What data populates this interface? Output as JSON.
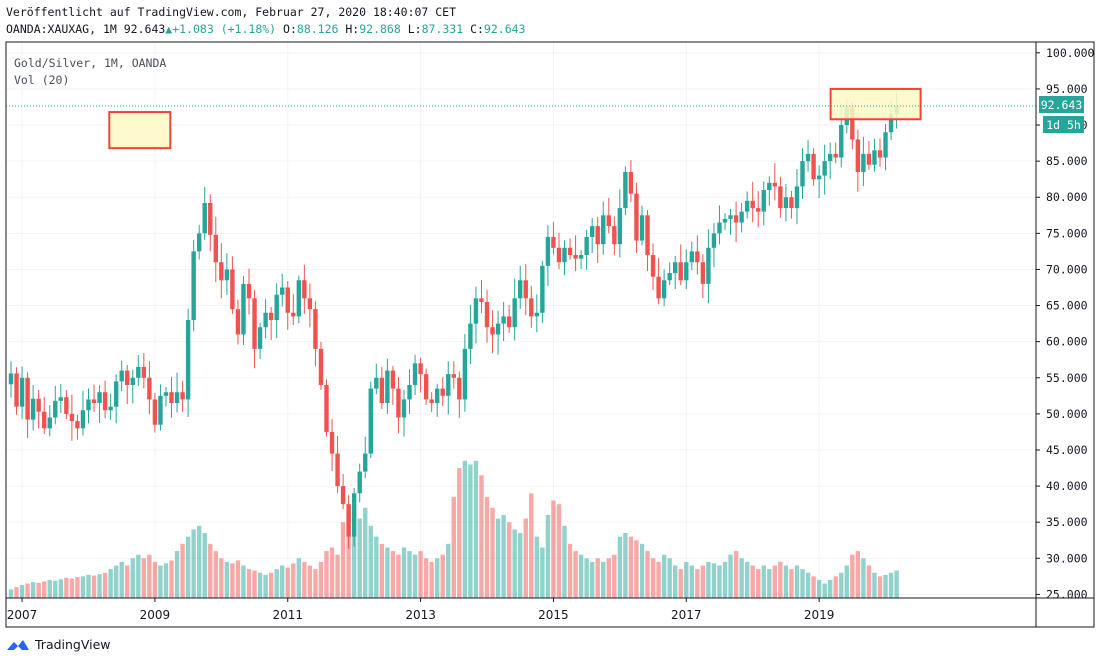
{
  "header": {
    "published": "Veröffentlicht auf TradingView.com, Februar 27, 2020 18:40:07 CET",
    "symbol": "OANDA:XAUXAG,",
    "interval": "1M",
    "last": "92.643",
    "change": "+1.083 (+1.18%)",
    "o_label": "O:",
    "o_value": "88.126",
    "h_label": "H:",
    "h_value": "92.868",
    "l_label": "L:",
    "l_value": "87.331",
    "c_label": "C:",
    "c_value": "92.643"
  },
  "legend": {
    "title": "Gold/Silver, 1M, OANDA",
    "indicator": "Vol (20)"
  },
  "price_badge": {
    "value": "92.643",
    "countdown": "1d 5h"
  },
  "colors": {
    "up": "#26a69a",
    "down": "#ef5350",
    "highlight_fill": "#fff9c4",
    "highlight_stroke": "#f44336"
  },
  "footer": {
    "brand": "TradingView"
  },
  "chart_data": {
    "type": "candlestick",
    "interval": "1M",
    "y_ticks": [
      25,
      30,
      35,
      40,
      45,
      50,
      55,
      60,
      65,
      70,
      75,
      80,
      85,
      90,
      95,
      100
    ],
    "ylim": [
      24.5,
      101.5
    ],
    "x_ticks": [
      "2007",
      "2009",
      "2011",
      "2013",
      "2015",
      "2017",
      "2019"
    ],
    "x_range": [
      "2006-11",
      "2020-05"
    ],
    "last_price": 92.643,
    "grid": true,
    "closes": [
      55.6,
      51.0,
      55.0,
      49.2,
      52.1,
      50.3,
      48.0,
      49.5,
      51.8,
      52.3,
      50.0,
      49.0,
      48.0,
      50.5,
      52.0,
      51.5,
      53.0,
      50.5,
      51.0,
      54.5,
      56.0,
      54.0,
      55.0,
      56.5,
      55.0,
      52.0,
      48.5,
      52.5,
      53.0,
      51.5,
      53.0,
      52.0,
      63.0,
      72.5,
      75.0,
      79.2,
      74.8,
      71.0,
      68.5,
      70.0,
      64.5,
      61.0,
      68.0,
      66.0,
      59.0,
      62.0,
      64.0,
      63.0,
      66.5,
      67.5,
      64.0,
      63.5,
      68.5,
      66.0,
      64.5,
      59.0,
      54.0,
      47.5,
      44.5,
      40.0,
      37.5,
      33.0,
      39.0,
      42.0,
      44.5,
      53.5,
      55.0,
      51.5,
      56.0,
      53.5,
      49.5,
      52.0,
      54.0,
      57.0,
      55.5,
      52.0,
      51.5,
      53.5,
      52.5,
      55.5,
      55.0,
      52.0,
      59.0,
      62.5,
      66.0,
      65.5,
      62.0,
      61.0,
      62.5,
      63.5,
      62.0,
      66.0,
      68.5,
      66.0,
      63.5,
      64.0,
      70.5,
      74.5,
      73.0,
      71.0,
      73.0,
      72.0,
      71.5,
      72.0,
      74.5,
      76.0,
      73.5,
      77.5,
      76.0,
      73.5,
      78.5,
      83.5,
      80.5,
      74.0,
      77.5,
      72.0,
      69.0,
      66.0,
      68.5,
      69.5,
      71.0,
      68.5,
      71.0,
      72.5,
      71.0,
      68.0,
      73.0,
      75.0,
      76.5,
      77.0,
      77.5,
      76.5,
      78.0,
      79.5,
      78.5,
      78.0,
      81.0,
      82.0,
      81.5,
      78.5,
      80.0,
      78.5,
      81.5,
      85.0,
      86.0,
      82.5,
      83.0,
      85.0,
      86.0,
      85.5,
      90.0,
      92.5,
      88.0,
      83.5,
      86.0,
      84.5,
      86.5,
      85.5,
      89.0,
      91.56,
      92.643
    ],
    "volume_ylim": [
      0,
      20
    ],
    "volume_axis": "shares price axis (bars rise from the 25 line; scale 0 to ~20 in price units)",
    "volumes": [
      1.2,
      1.5,
      1.8,
      2.0,
      2.2,
      2.1,
      2.3,
      2.5,
      2.4,
      2.6,
      2.8,
      2.7,
      2.9,
      3.0,
      3.2,
      3.1,
      3.3,
      3.5,
      4.0,
      4.5,
      5.0,
      4.5,
      5.5,
      6.0,
      5.5,
      6.0,
      5.0,
      4.5,
      4.8,
      5.2,
      6.5,
      7.5,
      8.5,
      9.5,
      10.0,
      9.0,
      7.5,
      6.5,
      5.5,
      5.0,
      4.8,
      5.2,
      4.5,
      4.0,
      3.8,
      3.5,
      3.2,
      3.5,
      4.0,
      4.5,
      4.2,
      4.8,
      5.5,
      5.0,
      4.5,
      4.0,
      5.0,
      6.5,
      7.0,
      6.0,
      10.5,
      12.0,
      8.5,
      11.0,
      12.5,
      10.0,
      8.5,
      7.5,
      7.0,
      6.5,
      6.0,
      7.0,
      6.5,
      6.0,
      6.5,
      5.5,
      5.0,
      5.5,
      6.0,
      7.5,
      14.0,
      18.0,
      19.0,
      18.5,
      19.0,
      17.0,
      14.0,
      12.5,
      11.0,
      11.5,
      10.5,
      9.5,
      9.0,
      11.0,
      14.5,
      8.5,
      7.0,
      11.5,
      13.5,
      13.0,
      10.0,
      7.5,
      6.5,
      6.0,
      5.5,
      5.0,
      5.5,
      5.0,
      5.5,
      6.0,
      8.5,
      9.0,
      8.5,
      8.0,
      7.5,
      6.5,
      5.5,
      5.0,
      6.0,
      5.5,
      4.5,
      4.0,
      5.0,
      4.5,
      4.0,
      4.5,
      5.0,
      4.8,
      4.5,
      5.0,
      6.0,
      6.5,
      5.5,
      5.0,
      4.5,
      4.0,
      4.5,
      4.0,
      4.5,
      5.0,
      4.5,
      4.0,
      4.5,
      4.0,
      3.5,
      3.0,
      2.5,
      2.0,
      2.5,
      3.0,
      3.5,
      4.5,
      6.0,
      6.5,
      5.5,
      4.5,
      3.5,
      3.0,
      3.2,
      3.5,
      3.8
    ]
  }
}
